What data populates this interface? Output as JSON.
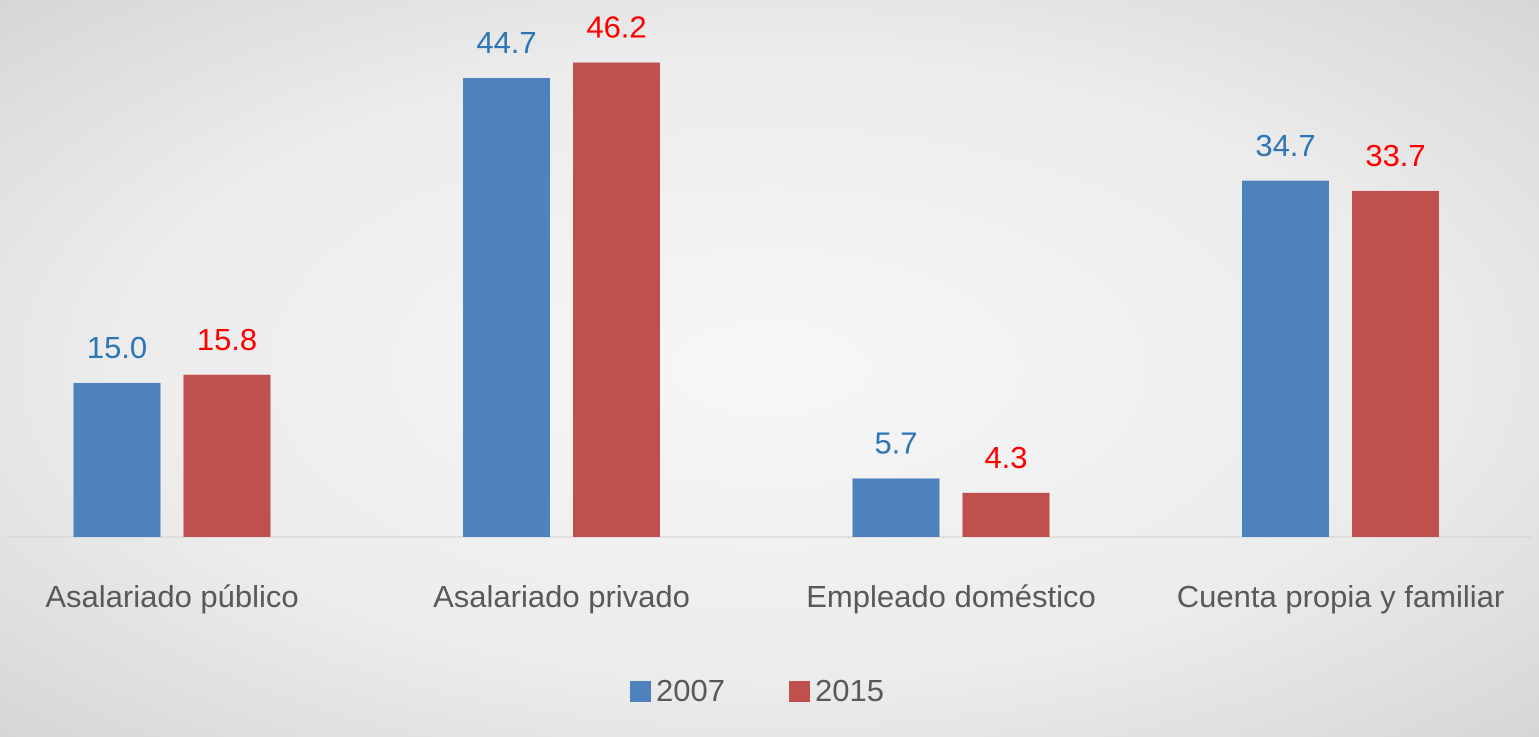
{
  "chart_data": {
    "type": "bar",
    "categories": [
      "Asalariado público",
      "Asalariado privado",
      "Empleado doméstico",
      "Cuenta propia y familiar"
    ],
    "series": [
      {
        "name": "2007",
        "color": "#4f81bd",
        "label_color": "#2e75b6",
        "values": [
          15.0,
          44.7,
          5.7,
          34.7
        ],
        "value_labels": [
          "15.0",
          "44.7",
          "5.7",
          "34.7"
        ]
      },
      {
        "name": "2015",
        "color": "#c0504d",
        "label_color": "#ff0000",
        "values": [
          15.8,
          46.2,
          4.3,
          33.7
        ],
        "value_labels": [
          "15.8",
          "46.2",
          "4.3",
          "33.7"
        ]
      }
    ],
    "ylim": [
      0,
      52
    ],
    "grid": false,
    "legend": "bottom"
  }
}
